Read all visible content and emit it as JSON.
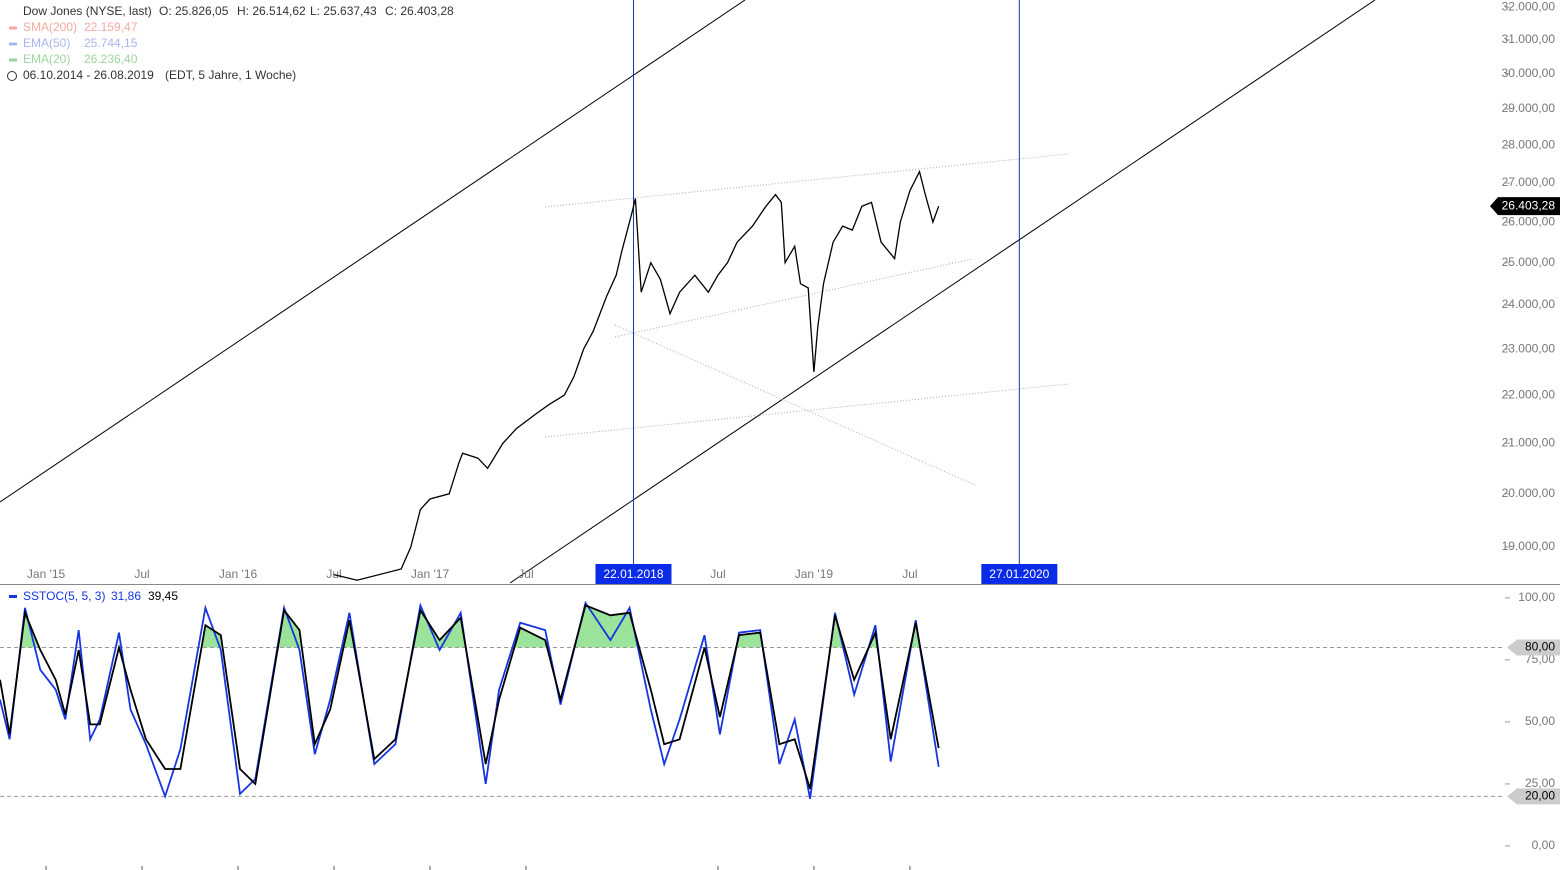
{
  "chart_data": [
    {
      "type": "line",
      "title": "Dow Jones (NYSE, last)",
      "ohlc": [
        "O: 25.826,05",
        "H: 26.514,62",
        "L: 25.637,43",
        "C: 26.403,28"
      ],
      "indicators": [
        {
          "name": "SMA(200)",
          "value_label": "22.159,47",
          "color": "#f2aaa2"
        },
        {
          "name": "EMA(50)",
          "value_label": "25.744,15",
          "color": "#aab6ee"
        },
        {
          "name": "EMA(20)",
          "value_label": "26.236,40",
          "color": "#9fd49f"
        }
      ],
      "date_range": "06.10.2014 - 26.08.2019",
      "period": "(EDT, 5 Jahre, 1 Woche)",
      "log_scale": true,
      "color": "#000000",
      "x": [
        2016.5,
        2016.62,
        2016.85,
        2016.9,
        2016.95,
        2017.0,
        2017.1,
        2017.15,
        2017.17,
        2017.25,
        2017.3,
        2017.38,
        2017.45,
        2017.55,
        2017.62,
        2017.7,
        2017.75,
        2017.8,
        2017.85,
        2017.92,
        2017.97,
        2018.0,
        2018.05,
        2018.07,
        2018.1,
        2018.15,
        2018.2,
        2018.25,
        2018.3,
        2018.38,
        2018.45,
        2018.5,
        2018.55,
        2018.6,
        2018.68,
        2018.75,
        2018.8,
        2018.83,
        2018.85,
        2018.9,
        2018.93,
        2018.97,
        2019.0,
        2019.02,
        2019.05,
        2019.1,
        2019.15,
        2019.2,
        2019.25,
        2019.3,
        2019.35,
        2019.42,
        2019.45,
        2019.5,
        2019.55,
        2019.58,
        2019.62,
        2019.65
      ],
      "values": [
        18500,
        18400,
        18600,
        19000,
        19700,
        19900,
        20000,
        20600,
        20800,
        20700,
        20500,
        21000,
        21300,
        21600,
        21800,
        22000,
        22400,
        23000,
        23400,
        24200,
        24700,
        25300,
        26200,
        26600,
        24300,
        25000,
        24600,
        23800,
        24300,
        24700,
        24300,
        24700,
        25000,
        25500,
        25900,
        26400,
        26700,
        26500,
        25000,
        25400,
        24500,
        24400,
        22500,
        23500,
        24500,
        25500,
        25900,
        25800,
        26400,
        26500,
        25500,
        25100,
        26000,
        26800,
        27300,
        26700,
        26000,
        26403.28
      ],
      "last_label": "26.403,28",
      "xlim": [
        2014.76,
        2022.6
      ],
      "ylim": [
        18350,
        32220
      ],
      "xticks": [
        {
          "value": 2015.0,
          "label": "Jan '15"
        },
        {
          "value": 2015.5,
          "label": "Jul"
        },
        {
          "value": 2016.0,
          "label": "Jan '16"
        },
        {
          "value": 2016.5,
          "label": "Jul"
        },
        {
          "value": 2017.0,
          "label": "Jan '17"
        },
        {
          "value": 2017.5,
          "label": "Jul"
        },
        {
          "value": 2018.5,
          "label": "Jul"
        },
        {
          "value": 2019.0,
          "label": "Jan '19"
        },
        {
          "value": 2019.5,
          "label": "Jul"
        }
      ],
      "yticks": [
        {
          "value": 32000,
          "label": "32.000,00"
        },
        {
          "value": 31000,
          "label": "31.000,00"
        },
        {
          "value": 30000,
          "label": "30.000,00"
        },
        {
          "value": 29000,
          "label": "29.000,00"
        },
        {
          "value": 28000,
          "label": "28.000,00"
        },
        {
          "value": 27000,
          "label": "27.000,00"
        },
        {
          "value": 26000,
          "label": "26.000,00"
        },
        {
          "value": 25000,
          "label": "25.000,00"
        },
        {
          "value": 24000,
          "label": "24.000,00"
        },
        {
          "value": 23000,
          "label": "23.000,00"
        },
        {
          "value": 22000,
          "label": "22.000,00"
        },
        {
          "value": 21000,
          "label": "21.000,00"
        },
        {
          "value": 20000,
          "label": "20.000,00"
        },
        {
          "value": 19000,
          "label": "19.000,00"
        }
      ],
      "annotations": [
        {
          "value": 2018.06,
          "label": "22.01.2018"
        },
        {
          "value": 2020.07,
          "label": "27.01.2020"
        }
      ]
    },
    {
      "type": "line",
      "title": "SSTOC(5, 5, 3)",
      "x": [
        2014.76,
        2014.81,
        2014.89,
        2014.97,
        2015.05,
        2015.1,
        2015.17,
        2015.23,
        2015.28,
        2015.38,
        2015.44,
        2015.52,
        2015.62,
        2015.7,
        2015.83,
        2015.91,
        2016.01,
        2016.09,
        2016.24,
        2016.32,
        2016.4,
        2016.48,
        2016.58,
        2016.71,
        2016.82,
        2016.95,
        2017.05,
        2017.16,
        2017.29,
        2017.36,
        2017.47,
        2017.6,
        2017.68,
        2017.81,
        2017.94,
        2018.04,
        2018.15,
        2018.22,
        2018.3,
        2018.43,
        2018.51,
        2018.61,
        2018.72,
        2018.82,
        2018.9,
        2018.98,
        2019.11,
        2019.21,
        2019.32,
        2019.4,
        2019.53,
        2019.65
      ],
      "series": [
        {
          "color": "#1736e0",
          "value_label": "31,86",
          "values": [
            59,
            43,
            96,
            71,
            63,
            51,
            87,
            43,
            51,
            86,
            55,
            41,
            20,
            39,
            96,
            79,
            21,
            27,
            96,
            79,
            37,
            59,
            94,
            33,
            41,
            97,
            79,
            94,
            25,
            63,
            90,
            87,
            57,
            98,
            83,
            96,
            55,
            33,
            51,
            85,
            45,
            86,
            87,
            33,
            51,
            19,
            94,
            61,
            89,
            34,
            91,
            31.86
          ]
        },
        {
          "color": "#000000",
          "value_label": "39,45",
          "values": [
            67,
            45,
            94,
            79,
            67,
            53,
            79,
            49,
            49,
            80,
            63,
            43,
            31,
            31,
            89,
            85,
            31,
            25,
            95,
            87,
            41,
            55,
            91,
            35,
            43,
            95,
            83,
            92,
            33,
            59,
            88,
            83,
            59,
            97,
            93,
            94,
            63,
            41,
            43,
            80,
            52,
            85,
            86,
            41,
            43,
            23,
            93,
            67,
            86,
            43,
            90,
            39.45
          ]
        }
      ],
      "levels": [
        {
          "value": 80,
          "label": "80,00"
        },
        {
          "value": 20,
          "label": "20,00"
        }
      ],
      "fill_color": "#9be39b",
      "ylim": [
        -9.7,
        105.2
      ],
      "yticks": [
        {
          "value": 100,
          "label": "100,00"
        },
        {
          "value": 75,
          "label": "75,00"
        },
        {
          "value": 50,
          "label": "50,00"
        },
        {
          "value": 25,
          "label": "25,00"
        },
        {
          "value": 0,
          "label": "0,00"
        }
      ]
    }
  ]
}
